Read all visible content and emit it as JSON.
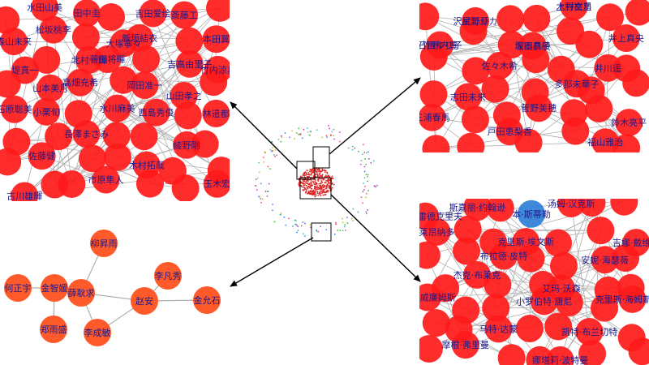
{
  "colors": {
    "node_red": "#ff1a1a",
    "node_orange": "#ff5a2a",
    "node_blue": "#2f7fd8",
    "edge": "#b0b0b0",
    "label": "#1a1a8c",
    "arrow": "#000000"
  },
  "panels": {
    "top_left": {
      "labels": [
        "水田山美",
        "吉田爱绘",
        "森山未来",
        "大塚寧々",
        "本田翼",
        "北村一輝",
        "吉高由里子",
        "山本美月",
        "岡田准一",
        "石原聡美",
        "水川麻美",
        "林遣都",
        "長澤まさみ",
        "綾野剛",
        "佐藤健",
        "木村拓哉",
        "古川雄輝",
        "市原隼人",
        "玉木宏",
        "田中圭",
        "斎藤工",
        "松坂桃李",
        "新垣結衣",
        "堤真一",
        "菅田将暉",
        "竹内涼真",
        "高畑充希",
        "山田孝之",
        "小栗旬",
        "西島秀俊"
      ]
    },
    "top_right": {
      "labels": [
        "星野源",
        "木村文乃",
        "石田ゆり子",
        "坂本真綾",
        "井上真央",
        "佐々木希",
        "井川遥",
        "志田未来",
        "多部未華子",
        "三浦春馬",
        "菅野美穂",
        "鈴木亮平",
        "戸田恵梨香",
        "福山雅治",
        "沢尻エリカ",
        "上野樹里",
        "竹野内豊",
        "深田恭子"
      ]
    },
    "bottom_right": {
      "labels": [
        "斯嘉丽·约翰逊",
        "汤姆·汉克斯",
        "莱昂纳多",
        "克里斯·埃文斯",
        "吉娜·戴维斯",
        "布拉德·皮特",
        "安妮·海瑟薇",
        "杰克·布莱克",
        "艾玛·沃森",
        "罗宾·威廉姆斯",
        "小罗伯特·唐尼",
        "克里斯·海姆斯沃斯",
        "马特·达蒙",
        "凯特·布兰切特",
        "摩根·弗里曼",
        "娜塔莉·波特曼",
        "丹尼尔·雷德克里夫",
        "本·斯蒂勒"
      ]
    },
    "bottom_left": {
      "nodes": [
        {
          "id": "n1",
          "label": "柳昇雨"
        },
        {
          "id": "n2",
          "label": "金智媛"
        },
        {
          "id": "n3",
          "label": "何正宇"
        },
        {
          "id": "n4",
          "label": "薛耿求"
        },
        {
          "id": "n5",
          "label": "李凡秀"
        },
        {
          "id": "n6",
          "label": "赵安"
        },
        {
          "id": "n7",
          "label": "金允石"
        },
        {
          "id": "n8",
          "label": "郑雨盛"
        },
        {
          "id": "n9",
          "label": "李成敏"
        }
      ],
      "edges": [
        [
          "n1",
          "n4"
        ],
        [
          "n2",
          "n3"
        ],
        [
          "n2",
          "n4"
        ],
        [
          "n2",
          "n8"
        ],
        [
          "n4",
          "n9"
        ],
        [
          "n4",
          "n6"
        ],
        [
          "n5",
          "n6"
        ],
        [
          "n6",
          "n7"
        ],
        [
          "n6",
          "n9"
        ]
      ]
    }
  }
}
